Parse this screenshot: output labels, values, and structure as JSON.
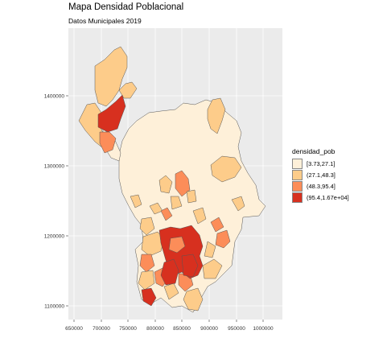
{
  "title": "Mapa Densidad Poblacional",
  "subtitle": "Datos Municipales 2019",
  "map": {
    "x_ticks": [
      "650000",
      "700000",
      "750000",
      "800000",
      "850000",
      "900000",
      "950000",
      "1000000"
    ],
    "y_ticks": [
      "1400000",
      "1300000",
      "1200000",
      "1100000"
    ],
    "panel_background": "#ebebeb",
    "border_color": "#555555"
  },
  "legend": {
    "title": "densidad_pob",
    "items": [
      {
        "label": "[3.73,27.1]",
        "color": "#fef0d9"
      },
      {
        "label": "(27.1,48.3]",
        "color": "#fdcc8a"
      },
      {
        "label": "(48.3,95.4]",
        "color": "#fc8d59"
      },
      {
        "label": "(95.4,1.67e+04]",
        "color": "#d7301f"
      }
    ]
  }
}
